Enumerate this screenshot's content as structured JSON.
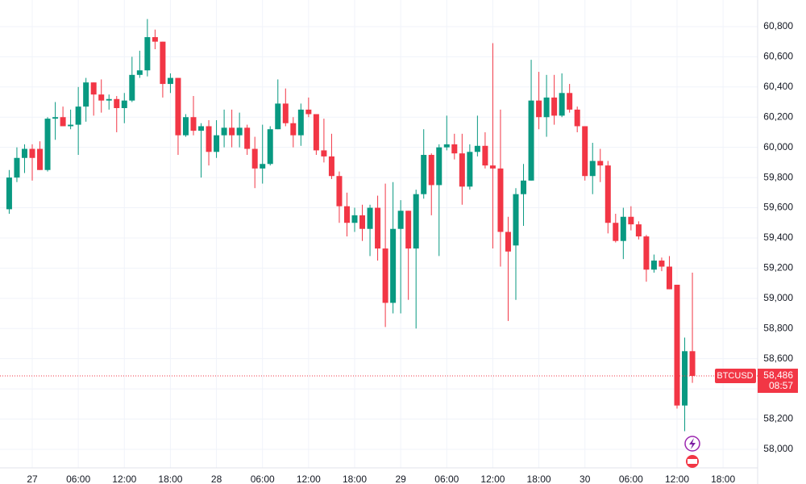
{
  "chart_data": {
    "type": "candlestick",
    "x": [
      -3,
      -2,
      -1,
      0,
      1,
      2,
      3,
      4,
      5,
      6,
      7,
      8,
      9,
      10,
      11,
      12,
      13,
      14,
      15,
      16,
      17,
      18,
      19,
      20,
      21,
      22,
      23,
      24,
      25,
      26,
      27,
      28,
      29,
      30,
      31,
      32,
      33,
      34,
      35,
      36,
      37,
      38,
      39,
      40,
      41,
      42,
      43,
      44,
      45,
      46,
      47,
      48,
      49,
      50,
      51,
      52,
      53,
      54,
      55,
      56,
      57,
      58,
      59,
      60,
      61,
      62,
      63,
      64,
      65,
      66,
      67,
      68,
      69,
      70,
      71,
      72,
      73,
      74,
      75,
      76,
      77,
      78,
      79,
      80,
      81,
      82,
      83,
      84,
      85,
      86
    ],
    "series": [
      {
        "name": "BTCUSD",
        "up_color": "#089981",
        "down_color": "#f23645",
        "open": [
          59590,
          59800,
          59930,
          59990,
          59990,
          59850,
          60190,
          60200,
          60140,
          60150,
          60270,
          60430,
          60350,
          60310,
          60320,
          60260,
          60310,
          60480,
          60510,
          60730,
          60700,
          60420,
          60460,
          60080,
          60200,
          60110,
          60140,
          59970,
          60080,
          60130,
          60080,
          60130,
          59990,
          59860,
          59890,
          60120,
          60290,
          60160,
          60080,
          60250,
          60220,
          59980,
          59940,
          59810,
          59610,
          59500,
          59550,
          59460,
          59600,
          59330,
          58970,
          59460,
          59580,
          59330,
          59690,
          59950,
          59750,
          60000,
          60020,
          59960,
          59740,
          59970,
          60010,
          59880,
          59860,
          59440,
          59350,
          59690,
          59780,
          60310,
          60200,
          60330,
          60210,
          60360,
          60250,
          60140,
          59810,
          59910,
          59880,
          59500,
          59380,
          59540,
          59490,
          59410,
          59190,
          59250,
          59210,
          59090,
          58290,
          58650
        ],
        "high": [
          59850,
          60000,
          60020,
          60020,
          60040,
          60200,
          60300,
          60270,
          60250,
          60400,
          60460,
          60430,
          60450,
          60350,
          60340,
          60360,
          60600,
          60640,
          60850,
          60780,
          60700,
          60490,
          60460,
          60220,
          60340,
          60160,
          60180,
          60180,
          60250,
          60250,
          60230,
          60150,
          60070,
          60150,
          60140,
          60450,
          60390,
          60200,
          60290,
          60330,
          60220,
          60190,
          60090,
          59840,
          59700,
          59600,
          59620,
          59620,
          59680,
          59760,
          59770,
          59650,
          59580,
          59720,
          60120,
          59960,
          60020,
          60210,
          60090,
          60090,
          60020,
          60210,
          60100,
          60690,
          60250,
          59540,
          59730,
          59890,
          60580,
          60500,
          60480,
          60480,
          60490,
          60420,
          60270,
          60140,
          60030,
          59990,
          59910,
          59560,
          59600,
          59610,
          59510,
          59420,
          59290,
          59270,
          59280,
          59090,
          58740,
          59170
        ],
        "low": [
          59560,
          59770,
          59830,
          59780,
          59850,
          59840,
          60050,
          60140,
          60120,
          59950,
          60170,
          60210,
          60230,
          60250,
          60100,
          60160,
          60300,
          60460,
          60470,
          60650,
          60330,
          60360,
          59950,
          60070,
          60080,
          59800,
          59880,
          59930,
          60000,
          60000,
          60000,
          59950,
          59730,
          59760,
          59880,
          60120,
          60140,
          60000,
          60010,
          60200,
          59950,
          59900,
          59790,
          59500,
          59410,
          59440,
          59380,
          59280,
          59250,
          58810,
          58900,
          58900,
          58990,
          58800,
          59660,
          59550,
          59280,
          59980,
          59920,
          59620,
          59720,
          59940,
          59860,
          59330,
          59210,
          58850,
          58990,
          59480,
          59780,
          60120,
          60070,
          60150,
          60200,
          60230,
          60100,
          59780,
          59690,
          59770,
          59430,
          59370,
          59260,
          59450,
          59390,
          59110,
          59170,
          59180,
          59060,
          58270,
          58120,
          58440
        ],
        "close": [
          59800,
          59930,
          59990,
          59930,
          59850,
          60190,
          60200,
          60140,
          60150,
          60270,
          60430,
          60350,
          60310,
          60320,
          60260,
          60310,
          60480,
          60510,
          60730,
          60700,
          60420,
          60460,
          60080,
          60200,
          60110,
          60140,
          59970,
          60080,
          60130,
          60080,
          60130,
          59990,
          59860,
          59890,
          60120,
          60290,
          60160,
          60080,
          60250,
          60220,
          59980,
          59940,
          59810,
          59610,
          59500,
          59550,
          59460,
          59600,
          59330,
          58970,
          59460,
          59580,
          59330,
          59690,
          59950,
          59750,
          60000,
          60020,
          59960,
          59740,
          59970,
          60010,
          59880,
          59860,
          59440,
          59310,
          59690,
          59780,
          60310,
          60200,
          60330,
          60210,
          60360,
          60250,
          60140,
          59810,
          59910,
          59880,
          59500,
          59380,
          59540,
          59490,
          59410,
          59190,
          59250,
          59210,
          59060,
          58290,
          58650,
          58486
        ]
      }
    ],
    "last_price": {
      "value": 58486,
      "label": "58,486"
    },
    "countdown": "08:57",
    "xlim": [
      -4.2,
      94.5
    ],
    "xticks": [
      {
        "value": 0,
        "label": "27"
      },
      {
        "value": 6,
        "label": "06:00"
      },
      {
        "value": 12,
        "label": "12:00"
      },
      {
        "value": 18,
        "label": "18:00"
      },
      {
        "value": 24,
        "label": "28"
      },
      {
        "value": 30,
        "label": "06:00"
      },
      {
        "value": 36,
        "label": "12:00"
      },
      {
        "value": 42,
        "label": "18:00"
      },
      {
        "value": 48,
        "label": "29"
      },
      {
        "value": 54,
        "label": "06:00"
      },
      {
        "value": 60,
        "label": "12:00"
      },
      {
        "value": 66,
        "label": "18:00"
      },
      {
        "value": 72,
        "label": "30"
      },
      {
        "value": 78,
        "label": "06:00"
      },
      {
        "value": 84,
        "label": "12:00"
      },
      {
        "value": 90,
        "label": "18:00"
      }
    ],
    "ylim": [
      57877,
      60976
    ],
    "yticks": [
      {
        "value": 58000,
        "label": "58,000"
      },
      {
        "value": 58200,
        "label": "58,200"
      },
      {
        "value": 58400,
        "label": "58,400"
      },
      {
        "value": 58600,
        "label": "58,600"
      },
      {
        "value": 58800,
        "label": "58,800"
      },
      {
        "value": 59000,
        "label": "59,000"
      },
      {
        "value": 59200,
        "label": "59,200"
      },
      {
        "value": 59400,
        "label": "59,400"
      },
      {
        "value": 59600,
        "label": "59,600"
      },
      {
        "value": 59800,
        "label": "59,800"
      },
      {
        "value": 60000,
        "label": "60,000"
      },
      {
        "value": 60200,
        "label": "60,200"
      },
      {
        "value": 60400,
        "label": "60,400"
      },
      {
        "value": 60600,
        "label": "60,600"
      },
      {
        "value": 60800,
        "label": "60,800"
      }
    ],
    "grid": true
  }
}
